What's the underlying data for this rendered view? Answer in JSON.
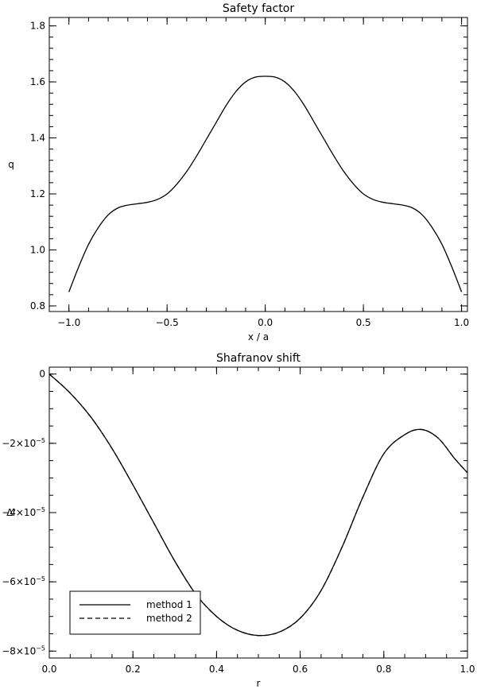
{
  "chart_data": [
    {
      "type": "line",
      "title": "Safety factor",
      "xlabel": "x / a",
      "ylabel": "q",
      "xlim": [
        -1.1,
        1.03
      ],
      "ylim": [
        0.78,
        1.83
      ],
      "xticks": [
        -1.0,
        -0.5,
        0.0,
        0.5,
        1.0
      ],
      "xtick_labels": [
        "−1.0",
        "−0.5",
        "0.0",
        "0.5",
        "1.0"
      ],
      "yticks": [
        0.8,
        1.0,
        1.2,
        1.4,
        1.6,
        1.8
      ],
      "ytick_labels": [
        "0.8",
        "1.0",
        "1.2",
        "1.4",
        "1.6",
        "1.8"
      ],
      "grid": false,
      "series": [
        {
          "style": "solid",
          "x": [
            -1.0,
            -0.95,
            -0.9,
            -0.85,
            -0.8,
            -0.75,
            -0.7,
            -0.65,
            -0.6,
            -0.55,
            -0.5,
            -0.45,
            -0.4,
            -0.35,
            -0.3,
            -0.25,
            -0.2,
            -0.15,
            -0.1,
            -0.05,
            0.0,
            0.05,
            0.1,
            0.15,
            0.2,
            0.25,
            0.3,
            0.35,
            0.4,
            0.45,
            0.5,
            0.55,
            0.6,
            0.65,
            0.7,
            0.75,
            0.8,
            0.85,
            0.9,
            0.95,
            1.0
          ],
          "y": [
            0.85,
            0.94,
            1.02,
            1.08,
            1.125,
            1.15,
            1.16,
            1.165,
            1.17,
            1.18,
            1.2,
            1.235,
            1.28,
            1.335,
            1.395,
            1.455,
            1.515,
            1.565,
            1.6,
            1.617,
            1.62,
            1.617,
            1.6,
            1.565,
            1.515,
            1.455,
            1.395,
            1.335,
            1.28,
            1.235,
            1.2,
            1.18,
            1.17,
            1.165,
            1.16,
            1.15,
            1.125,
            1.08,
            1.02,
            0.94,
            0.85
          ]
        }
      ]
    },
    {
      "type": "line",
      "title": "Shafranov shift",
      "xlabel": "r",
      "ylabel": "Δ'",
      "xlim": [
        0.0,
        1.0
      ],
      "ylim": [
        -8.2e-05,
        2e-06
      ],
      "xticks": [
        0.0,
        0.2,
        0.4,
        0.6,
        0.8,
        1.0
      ],
      "xtick_labels": [
        "0.0",
        "0.2",
        "0.4",
        "0.6",
        "0.8",
        "1.0"
      ],
      "yticks": [
        0.0,
        -2e-05,
        -4e-05,
        -6e-05,
        -8e-05
      ],
      "ytick_labels": [
        {
          "base": "0",
          "exp": ""
        },
        {
          "base": "−2×10",
          "exp": "−5"
        },
        {
          "base": "−4×10",
          "exp": "−5"
        },
        {
          "base": "−6×10",
          "exp": "−5"
        },
        {
          "base": "−8×10",
          "exp": "−5"
        }
      ],
      "grid": false,
      "legend_position": "bottom-left",
      "series": [
        {
          "name": "method 1",
          "style": "solid",
          "x": [
            0.0,
            0.05,
            0.1,
            0.15,
            0.2,
            0.25,
            0.3,
            0.35,
            0.4,
            0.45,
            0.5,
            0.55,
            0.6,
            0.65,
            0.7,
            0.75,
            0.8,
            0.85,
            0.89,
            0.93,
            0.97,
            1.0
          ],
          "y": [
            0.0,
            -5.5e-06,
            -1.25e-05,
            -2.15e-05,
            -3.2e-05,
            -4.3e-05,
            -5.4e-05,
            -6.35e-05,
            -7e-05,
            -7.4e-05,
            -7.55e-05,
            -7.45e-05,
            -7.05e-05,
            -6.25e-05,
            -5e-05,
            -3.55e-05,
            -2.3e-05,
            -1.75e-05,
            -1.6e-05,
            -1.85e-05,
            -2.45e-05,
            -2.85e-05
          ]
        },
        {
          "name": "method 2",
          "style": "dashed",
          "x": [
            0.0,
            0.05,
            0.1,
            0.15,
            0.2,
            0.25,
            0.3,
            0.35,
            0.4,
            0.45,
            0.5,
            0.55,
            0.6,
            0.65,
            0.7,
            0.75,
            0.8,
            0.85,
            0.89,
            0.93,
            0.97,
            1.0
          ],
          "y": [
            0.0,
            -5.5e-06,
            -1.25e-05,
            -2.15e-05,
            -3.2e-05,
            -4.3e-05,
            -5.4e-05,
            -6.35e-05,
            -7e-05,
            -7.4e-05,
            -7.55e-05,
            -7.45e-05,
            -7.05e-05,
            -6.25e-05,
            -5e-05,
            -3.55e-05,
            -2.3e-05,
            -1.75e-05,
            -1.6e-05,
            -1.85e-05,
            -2.45e-05,
            -2.85e-05
          ]
        }
      ]
    }
  ]
}
